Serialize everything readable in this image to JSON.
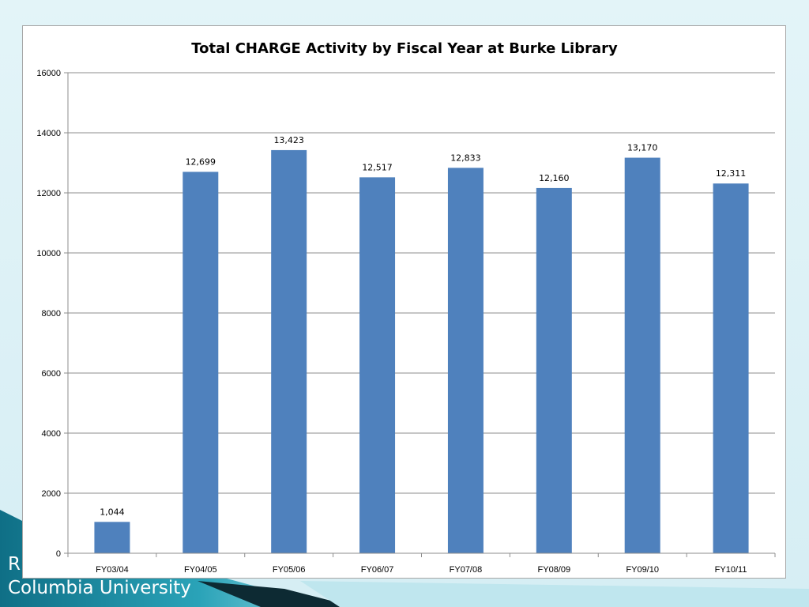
{
  "slide": {
    "footer_partial": "R",
    "footer_line": "Columbia University"
  },
  "colors": {
    "bar": "#4f81bd",
    "gridline": "#8c8c8c",
    "background": "#ffffff",
    "slide_teal": "#2aa3b8"
  },
  "chart_data": {
    "type": "bar",
    "title": "Total CHARGE Activity by Fiscal Year at Burke Library",
    "xlabel": "",
    "ylabel": "",
    "categories": [
      "FY03/04",
      "FY04/05",
      "FY05/06",
      "FY06/07",
      "FY07/08",
      "FY08/09",
      "FY09/10",
      "FY10/11"
    ],
    "values": [
      1044,
      12699,
      13423,
      12517,
      12833,
      12160,
      13170,
      12311
    ],
    "value_labels": [
      "1,044",
      "12,699",
      "13,423",
      "12,517",
      "12,833",
      "12,160",
      "13,170",
      "12,311"
    ],
    "ylim": [
      0,
      16000
    ],
    "yticks": [
      0,
      2000,
      4000,
      6000,
      8000,
      10000,
      12000,
      14000,
      16000
    ],
    "ytick_labels": [
      "0",
      "2000",
      "4000",
      "6000",
      "8000",
      "10000",
      "12000",
      "14000",
      "16000"
    ],
    "grid": true,
    "legend": "none"
  }
}
